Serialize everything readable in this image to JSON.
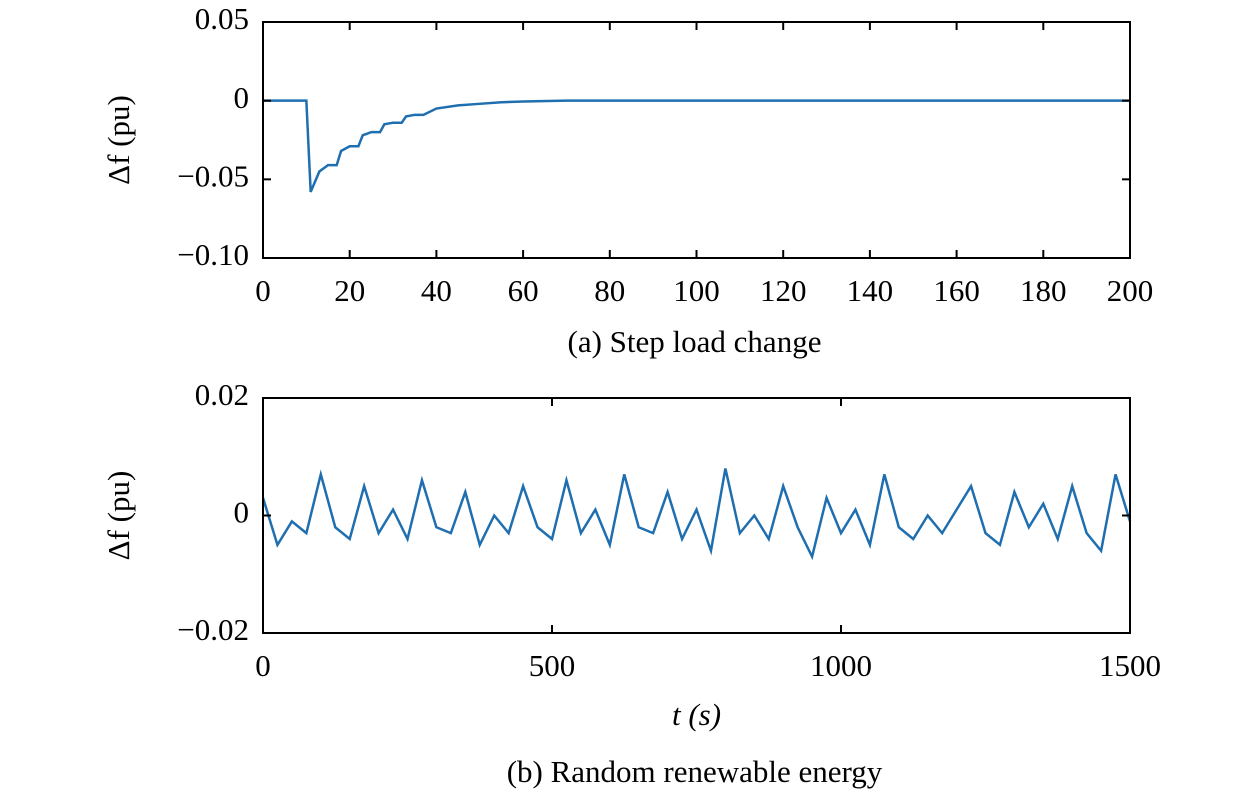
{
  "chart_data": [
    {
      "type": "line",
      "title": "(a) Step load change",
      "ylabel": "Δf (pu)",
      "x": [
        0,
        10,
        11,
        13,
        15,
        17,
        18,
        20,
        22,
        23,
        25,
        27,
        28,
        30,
        32,
        33,
        35,
        37,
        40,
        45,
        50,
        55,
        60,
        70,
        80,
        100,
        120,
        140,
        160,
        180,
        200
      ],
      "values": [
        0,
        0,
        -0.058,
        -0.045,
        -0.041,
        -0.041,
        -0.032,
        -0.029,
        -0.029,
        -0.022,
        -0.02,
        -0.02,
        -0.015,
        -0.014,
        -0.014,
        -0.01,
        -0.009,
        -0.009,
        -0.005,
        -0.003,
        -0.002,
        -0.001,
        -0.0005,
        0,
        0,
        0,
        0,
        0,
        0,
        0,
        0
      ],
      "color": "#1f6fb0",
      "xlim": [
        0,
        200
      ],
      "xticks": [
        0,
        20,
        40,
        60,
        80,
        100,
        120,
        140,
        160,
        180,
        200
      ],
      "ylim": [
        -0.1,
        0.05
      ],
      "yticks": [
        0.05,
        0,
        {
          "value": -0.05,
          "label": "−0.05"
        },
        {
          "value": -0.1,
          "label": "−0.10"
        }
      ]
    },
    {
      "type": "line",
      "title": "(b) Random renewable energy",
      "ylabel": "Δf (pu)",
      "xlabel": "t (s)",
      "x": [
        0,
        25,
        50,
        75,
        100,
        125,
        150,
        175,
        200,
        225,
        250,
        275,
        300,
        325,
        350,
        375,
        400,
        425,
        450,
        475,
        500,
        525,
        550,
        575,
        600,
        625,
        650,
        675,
        700,
        725,
        750,
        775,
        800,
        825,
        850,
        875,
        900,
        925,
        950,
        975,
        1000,
        1025,
        1050,
        1075,
        1100,
        1125,
        1150,
        1175,
        1200,
        1225,
        1250,
        1275,
        1300,
        1325,
        1350,
        1375,
        1400,
        1425,
        1450,
        1475,
        1500
      ],
      "values": [
        0.003,
        -0.005,
        -0.001,
        -0.003,
        0.007,
        -0.002,
        -0.004,
        0.005,
        -0.003,
        0.001,
        -0.004,
        0.006,
        -0.002,
        -0.003,
        0.004,
        -0.005,
        0,
        -0.003,
        0.005,
        -0.002,
        -0.004,
        0.006,
        -0.003,
        0.001,
        -0.005,
        0.007,
        -0.002,
        -0.003,
        0.004,
        -0.004,
        0.001,
        -0.006,
        0.008,
        -0.003,
        0,
        -0.004,
        0.005,
        -0.002,
        -0.007,
        0.003,
        -0.003,
        0.001,
        -0.005,
        0.007,
        -0.002,
        -0.004,
        0,
        -0.003,
        0.001,
        0.005,
        -0.003,
        -0.005,
        0.004,
        -0.002,
        0.002,
        -0.004,
        0.005,
        -0.003,
        -0.006,
        0.007,
        -0.001
      ],
      "color": "#1f6fb0",
      "xlim": [
        0,
        1500
      ],
      "xticks": [
        0,
        500,
        1000,
        1500
      ],
      "ylim": [
        -0.02,
        0.02
      ],
      "yticks": [
        0.02,
        0,
        {
          "value": -0.02,
          "label": "−0.02"
        }
      ]
    }
  ]
}
